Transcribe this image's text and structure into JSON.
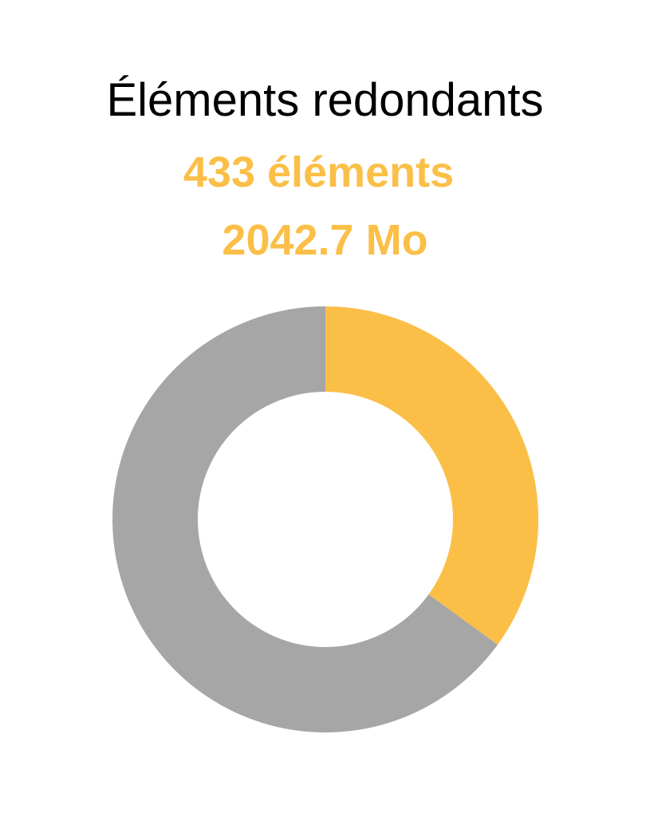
{
  "header": {
    "title": "Éléments redondants",
    "count_label": "433 éléments",
    "size_label": "2042.7 Mo"
  },
  "colors": {
    "accent": "#FBBF48",
    "neutral": "#A6A6A6",
    "title": "#000000",
    "background": "#FFFFFF"
  },
  "chart_data": {
    "type": "pie",
    "donut": true,
    "title": "Éléments redondants",
    "slices": [
      {
        "value": 35,
        "color": "#FBBF48"
      },
      {
        "value": 65,
        "color": "#A6A6A6"
      }
    ],
    "start_angle_deg": 0,
    "direction": "clockwise",
    "legend": "none"
  }
}
